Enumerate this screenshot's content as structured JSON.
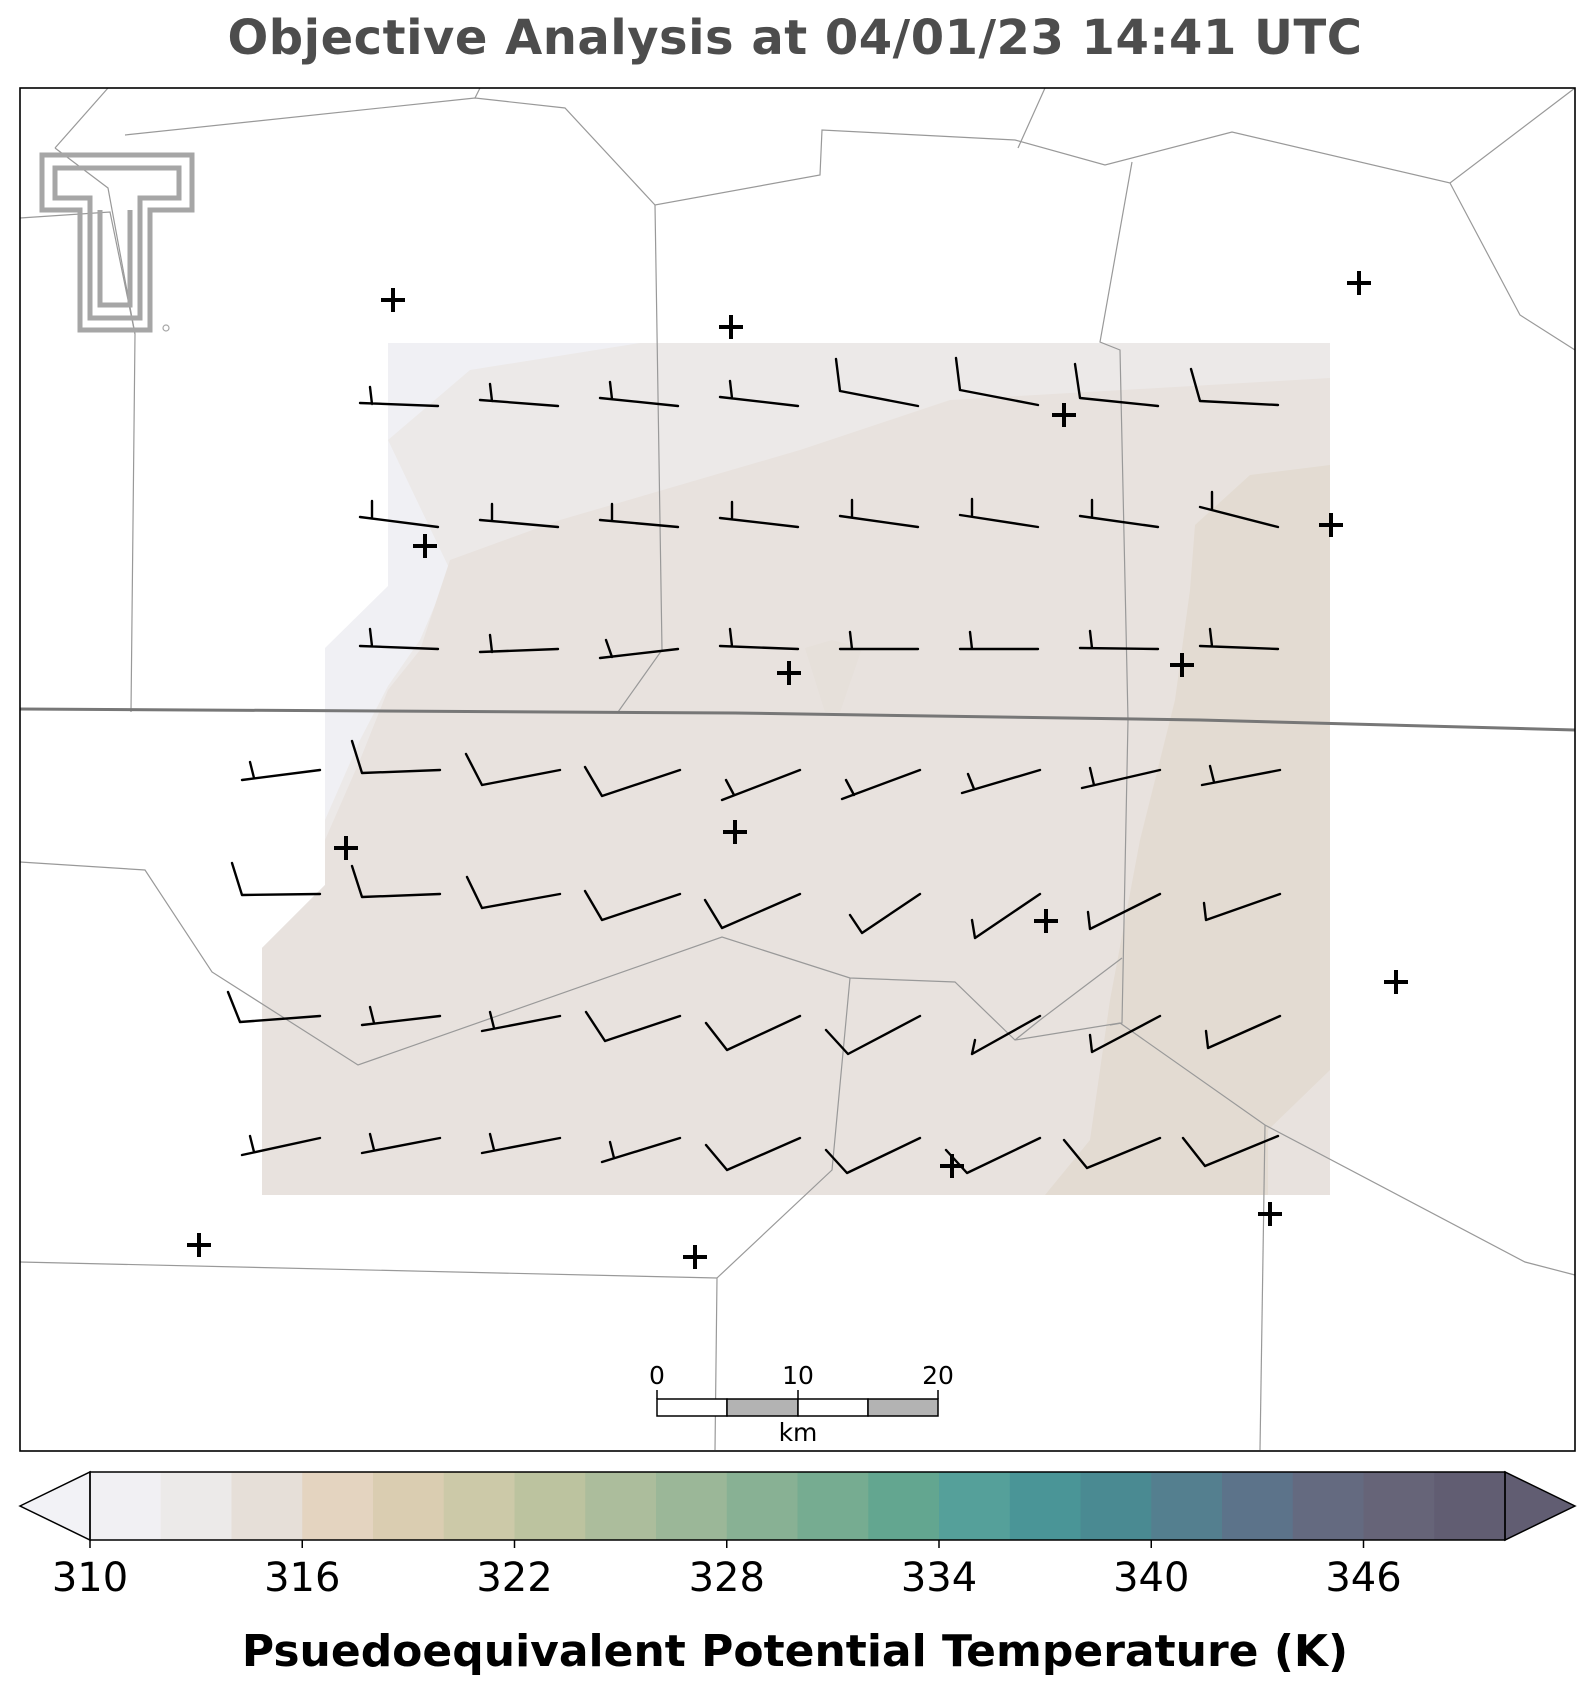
{
  "title": "Objective Analysis at 04/01/23 14:41 UTC",
  "logo": {
    "name": "texas-tech-double-t-logo",
    "color": "#a6a6a6"
  },
  "map": {
    "background": "#ffffff",
    "county_line_color": "#999999",
    "state_line_color": "#777777",
    "barb_color": "#000000",
    "station_marker_color": "#000000",
    "station_marker_icon": "plus-icon"
  },
  "scale_bar": {
    "labels": [
      "0",
      "10",
      "20"
    ],
    "unit": "km",
    "colors": [
      "#ffffff",
      "#b3b3b3",
      "#ffffff",
      "#b3b3b3"
    ]
  },
  "colorbar": {
    "label": "Psuedoequivalent Potential Temperature (K)",
    "ticks": [
      "310",
      "316",
      "322",
      "328",
      "334",
      "340",
      "346"
    ],
    "tick_values": [
      310,
      316,
      322,
      328,
      334,
      340,
      346
    ],
    "range": [
      310,
      350
    ],
    "extend": "both",
    "under_color": "#f2f2f6",
    "over_color": "#615d72",
    "colors": [
      "#f1f0f3",
      "#eceae9",
      "#e6dfd8",
      "#e4d4c0",
      "#dacdb1",
      "#ccc9a8",
      "#bcc39f",
      "#acbd9c",
      "#9bb798",
      "#88b194",
      "#76ac91",
      "#63a690",
      "#55a09a",
      "#4a9597",
      "#4a8a92",
      "#547f8f",
      "#5c738a",
      "#646a80",
      "#666478",
      "#615d72"
    ]
  },
  "analysis_colors": {
    "band_310": "#f0f0f4",
    "band_312": "#ece8e7",
    "band_314": "#e6e0db",
    "band_316": "#e3d9d0"
  }
}
